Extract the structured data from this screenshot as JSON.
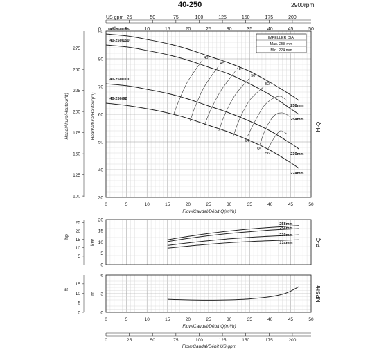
{
  "header": {
    "model": "40-250",
    "speed": "2900rpm"
  },
  "labels": {
    "top_axis_unit": "US gpm",
    "top_axis_unit_m3h": "m³/h",
    "flow_axis": "Flow/Caudal/Débit Q(m³/h)",
    "flow_axis_gpm": "Flow/Caudal/Débit  US gpm",
    "head_ft_axis": "Head/Altura/Hauteur(ft)",
    "head_m_axis": "Head/Altura/Hauteur(m)",
    "power_hp": "hp",
    "power_kw": "kW",
    "npsh_ft": "ft",
    "npsh_m": "m",
    "hq_tag": "H-Q",
    "pq_tag": "P-Q",
    "npsh_tag": "NPSHr"
  },
  "impeller_box": {
    "title": "IMPELLER DIA.",
    "max": "Max.  258 mm",
    "min": "Min.  224 mm"
  },
  "chart_data": [
    {
      "type": "line",
      "panel": "head",
      "x": [
        0,
        5,
        10,
        15,
        20,
        25,
        30,
        35,
        40,
        45,
        47
      ],
      "xlim": [
        0,
        50
      ],
      "ylim": [
        30,
        90
      ],
      "y_ticks": [
        30,
        40,
        50,
        60,
        70,
        80,
        90
      ],
      "y_ft_ticks": [
        100,
        125,
        150,
        175,
        200,
        225,
        250,
        275
      ],
      "x_gpm_ticks": [
        0,
        25,
        50,
        75,
        100,
        125,
        150,
        175,
        200
      ],
      "x_ticks": [
        0,
        5,
        10,
        15,
        20,
        25,
        30,
        35,
        40,
        45,
        50
      ],
      "series": [
        {
          "name": "40-250/185",
          "end_label": "258mm",
          "values": [
            89,
            88.3,
            87,
            85.5,
            83.5,
            81,
            78.5,
            75.5,
            71.5,
            67,
            65
          ]
        },
        {
          "name": "40-250/150",
          "end_label": "254mm",
          "values": [
            85,
            84.3,
            83,
            81.5,
            79.5,
            77,
            74.5,
            71,
            67,
            62,
            60
          ]
        },
        {
          "name": "40-250/110",
          "end_label": "230mm",
          "values": [
            71,
            70.3,
            69,
            67.5,
            65.5,
            63,
            60.5,
            57.5,
            54,
            49.5,
            47.5
          ]
        },
        {
          "name": "40-250/92",
          "end_label": "224mm",
          "values": [
            64,
            63.2,
            62,
            60.5,
            58.5,
            56,
            53.5,
            50.5,
            47,
            42.5,
            40.5
          ]
        }
      ],
      "efficiency_lines": [
        {
          "label": "40",
          "points": [
            [
              16.5,
              60
            ],
            [
              17.8,
              65
            ],
            [
              20,
              72
            ],
            [
              23.5,
              79.5
            ]
          ]
        },
        {
          "label": "45",
          "points": [
            [
              20.5,
              57.5
            ],
            [
              21.8,
              63
            ],
            [
              24,
              70
            ],
            [
              27.5,
              77.5
            ]
          ]
        },
        {
          "label": "48",
          "points": [
            [
              24,
              56
            ],
            [
              25.5,
              61.5
            ],
            [
              28,
              68.5
            ],
            [
              31.5,
              75.5
            ]
          ]
        },
        {
          "label": "50",
          "points": [
            [
              27.5,
              54
            ],
            [
              29,
              60
            ],
            [
              31.5,
              67
            ],
            [
              35,
              73
            ]
          ]
        },
        {
          "label": "52",
          "points": [
            [
              31,
              52
            ],
            [
              32.5,
              58
            ],
            [
              35,
              65
            ],
            [
              38.5,
              70
            ]
          ]
        },
        {
          "label": "54",
          "points": [
            [
              34.5,
              52
            ],
            [
              36.5,
              58
            ],
            [
              38.5,
              63
            ],
            [
              40.5,
              65.5
            ],
            [
              42.5,
              66.5
            ],
            [
              44,
              65
            ]
          ]
        },
        {
          "label": "55",
          "points": [
            [
              37.5,
              49
            ],
            [
              39,
              55
            ],
            [
              41,
              59.5
            ],
            [
              43,
              60.5
            ],
            [
              45,
              59
            ]
          ]
        },
        {
          "label": "56",
          "points": [
            [
              39.5,
              47.5
            ],
            [
              41,
              51.5
            ],
            [
              42.5,
              54
            ],
            [
              44,
              53
            ]
          ]
        }
      ]
    },
    {
      "type": "line",
      "panel": "power",
      "x": [
        15,
        20,
        25,
        30,
        35,
        40,
        45,
        47
      ],
      "xlim": [
        0,
        50
      ],
      "ylim": [
        0,
        20
      ],
      "y_ticks": [
        0,
        5,
        10,
        15,
        20
      ],
      "y_hp_ticks": [
        5,
        10,
        15,
        20,
        25
      ],
      "series": [
        {
          "name": "258mm",
          "values": [
            11,
            12.5,
            13.8,
            14.9,
            15.8,
            16.5,
            17.1,
            17.3
          ]
        },
        {
          "name": "254mm",
          "values": [
            10.2,
            11.6,
            12.8,
            13.8,
            14.6,
            15.3,
            15.8,
            16
          ]
        },
        {
          "name": "230mm",
          "values": [
            8.5,
            9.6,
            10.6,
            11.4,
            12.1,
            12.6,
            13,
            13.2
          ]
        },
        {
          "name": "224mm",
          "values": [
            7.3,
            8.2,
            9,
            9.7,
            10.2,
            10.6,
            10.9,
            11
          ]
        }
      ]
    },
    {
      "type": "line",
      "panel": "npsh",
      "x": [
        15,
        20,
        25,
        30,
        35,
        40,
        43,
        45,
        47
      ],
      "xlim": [
        0,
        50
      ],
      "ylim": [
        0,
        6
      ],
      "y_ticks": [
        0,
        3,
        6
      ],
      "y_ft_ticks": [
        0,
        5,
        10,
        15
      ],
      "x_gpm_ticks": [
        0,
        25,
        50,
        75,
        100,
        125,
        150,
        175,
        200
      ],
      "series": [
        {
          "name": "NPSHr",
          "values": [
            2.1,
            2.0,
            1.95,
            2.0,
            2.15,
            2.5,
            2.9,
            3.4,
            4.1
          ]
        }
      ]
    }
  ]
}
